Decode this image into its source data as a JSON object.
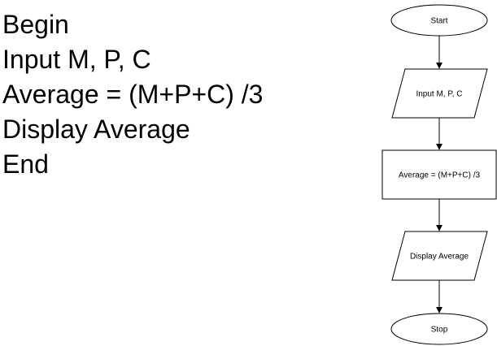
{
  "pseudocode": {
    "lines": [
      "Begin",
      "Input M, P, C",
      "Average = (M+P+C) /3",
      "Display Average",
      "End"
    ]
  },
  "flowchart": {
    "start": "Start",
    "input": "Input M, P, C",
    "process": "Average = (M+P+C) /3",
    "output": "Display Average",
    "stop": "Stop"
  },
  "colors": {
    "stroke": "#000000",
    "fill": "#ffffff",
    "text": "#000000"
  }
}
